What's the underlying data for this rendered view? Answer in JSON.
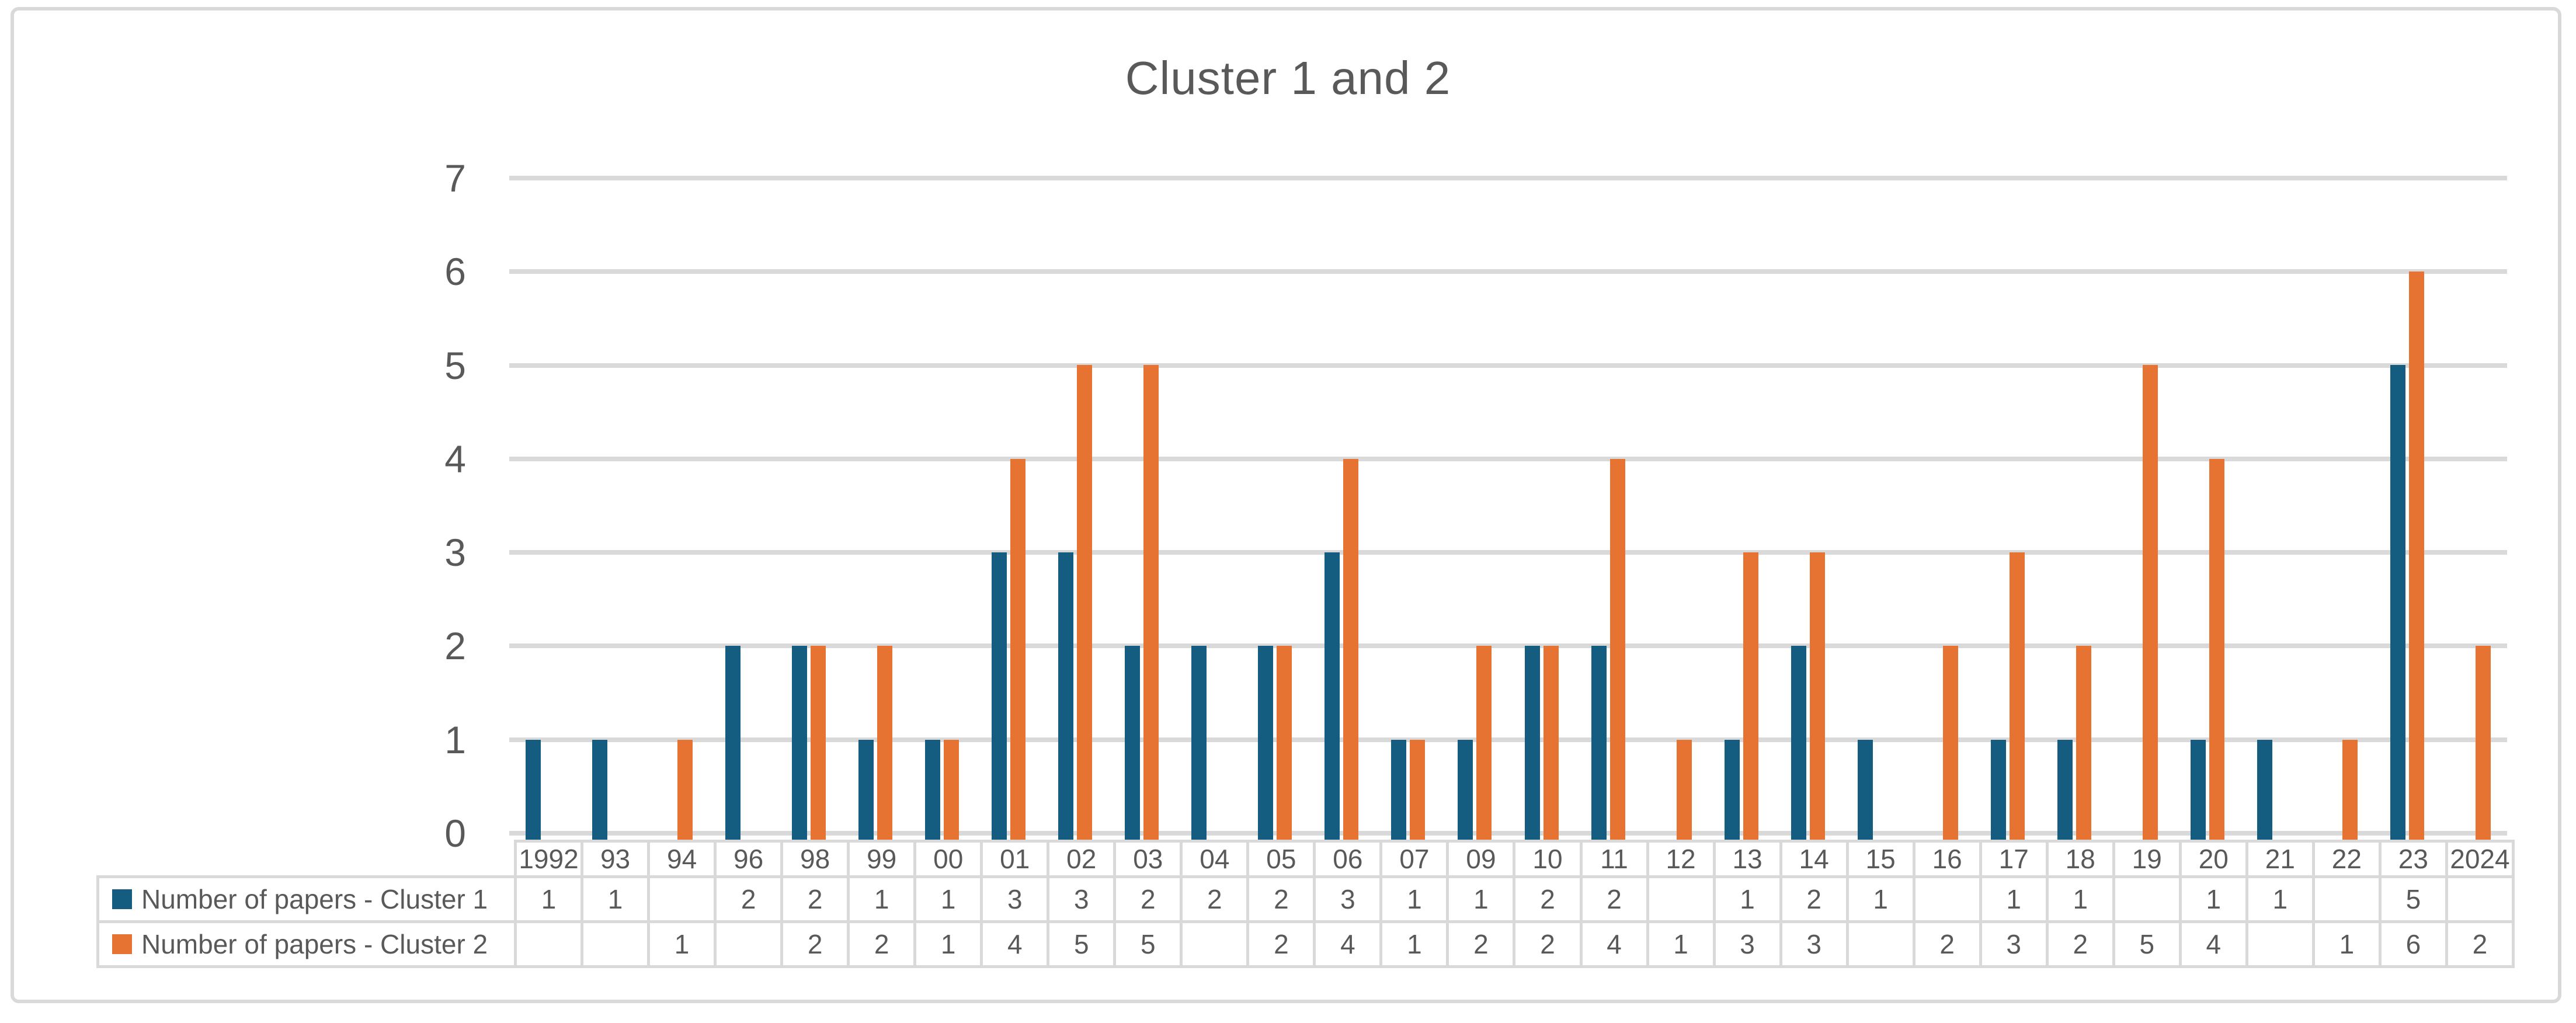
{
  "chart_data": {
    "type": "bar",
    "title": "Cluster 1 and 2",
    "categories": [
      "1992",
      "93",
      "94",
      "96",
      "98",
      "99",
      "00",
      "01",
      "02",
      "03",
      "04",
      "05",
      "06",
      "07",
      "09",
      "10",
      "11",
      "12",
      "13",
      "14",
      "15",
      "16",
      "17",
      "18",
      "19",
      "20",
      "21",
      "22",
      "23",
      "2024"
    ],
    "series": [
      {
        "name": "Number of papers - Cluster 1",
        "color": "#155D80",
        "values": [
          1,
          1,
          null,
          2,
          2,
          1,
          1,
          3,
          3,
          2,
          2,
          2,
          3,
          1,
          1,
          2,
          2,
          null,
          1,
          2,
          1,
          null,
          1,
          1,
          null,
          1,
          1,
          null,
          5,
          null
        ]
      },
      {
        "name": "Number of papers - Cluster 2",
        "color": "#E77333",
        "values": [
          null,
          null,
          1,
          null,
          2,
          2,
          1,
          4,
          5,
          5,
          null,
          2,
          4,
          1,
          2,
          2,
          4,
          1,
          3,
          3,
          null,
          2,
          3,
          2,
          5,
          4,
          null,
          1,
          6,
          2
        ]
      }
    ],
    "yticks": [
      7,
      6,
      5,
      4,
      3,
      2,
      1,
      0
    ],
    "ylim": [
      0,
      7
    ],
    "grid": true,
    "legend_position": "left-of-data-table",
    "data_table_shown": true
  },
  "colors": {
    "cluster1": "#155D80",
    "cluster2": "#E77333",
    "gridline": "#D9D9D9",
    "table_border": "#D9D9D9",
    "text": "#595959",
    "card_border": "#D9D9D9",
    "background": "#FFFFFF"
  }
}
